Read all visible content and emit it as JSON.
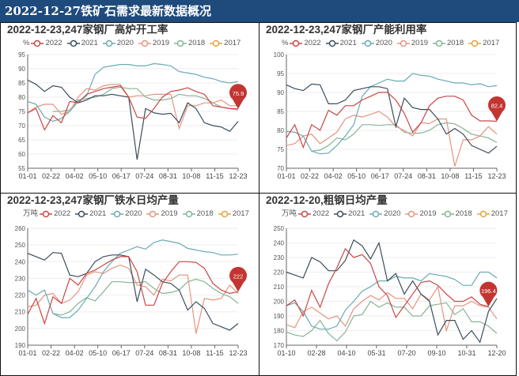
{
  "header": {
    "title": "2022-12-27铁矿石需求最新数据概况"
  },
  "colors": {
    "2022": "#c94744",
    "2021": "#3b4d5c",
    "2020": "#6aaab2",
    "2019": "#e59480",
    "2018": "#86b395",
    "2017": "#e6a23c",
    "marker": "#c23531"
  },
  "chart_data": [
    {
      "type": "line",
      "title": "2022-12-23,247家钢厂高炉开工率",
      "unit": "%",
      "ylim": [
        55,
        95
      ],
      "yticks": [
        "55",
        "60",
        "65",
        "70",
        "75",
        "80",
        "85",
        "90",
        "95"
      ],
      "xticks": [
        "01-01",
        "02-22",
        "04-02",
        "05-10",
        "06-17",
        "07-24",
        "08-31",
        "10-08",
        "11-15",
        "12-23"
      ],
      "marker_label": "75.9",
      "legend": [
        "2022",
        "2021",
        "2020",
        "2019",
        "2018",
        "2017"
      ],
      "series": [
        {
          "name": "2022",
          "values": [
            74.5,
            76,
            68.5,
            73.5,
            71,
            78.5,
            78,
            81,
            82,
            83,
            83.5,
            84,
            80,
            73,
            72.5,
            76,
            80,
            82,
            82.5,
            83.3,
            82,
            81,
            77,
            76.5,
            76,
            75.9
          ]
        },
        {
          "name": "2021",
          "values": [
            86,
            84.5,
            82,
            84,
            83.5,
            80,
            78,
            79,
            80.5,
            80.5,
            81,
            80.5,
            80,
            58,
            76,
            74.5,
            74,
            74.3,
            71,
            78,
            76,
            71,
            70,
            69.5,
            68,
            71.5
          ]
        },
        {
          "name": "2020",
          "values": [
            78.5,
            77.5,
            73,
            71.5,
            72.5,
            75,
            78.5,
            80.5,
            88,
            90.5,
            91,
            91.5,
            91.5,
            91,
            91,
            91.8,
            91.5,
            91,
            89,
            88.5,
            88,
            87,
            86.5,
            85.5,
            85,
            85.5
          ]
        },
        {
          "name": "2019",
          "values": [
            74.5,
            76.5,
            77.5,
            77.5,
            74,
            75,
            80,
            83,
            82.5,
            84,
            84.5,
            84.5,
            80,
            80.5,
            80.5,
            81,
            81,
            81,
            69,
            77,
            77,
            78,
            78,
            79,
            77,
            77
          ]
        },
        {
          "name": "2018",
          "values": [
            null,
            null,
            null,
            75,
            75,
            75.5,
            79,
            79.5,
            80,
            81,
            83,
            83.5,
            83,
            83,
            80,
            79,
            79,
            79.5,
            81,
            80.5,
            80.5,
            79.5,
            78,
            76.5,
            76,
            75.5
          ]
        },
        {
          "name": "2017",
          "values": []
        }
      ]
    },
    {
      "type": "line",
      "title": "2022-12-23,247家钢厂产能利用率",
      "unit": "%",
      "ylim": [
        70,
        100
      ],
      "yticks": [
        "70",
        "75",
        "80",
        "85",
        "90",
        "95",
        "100"
      ],
      "xticks": [
        "01-01",
        "02-22",
        "04-02",
        "05-10",
        "06-17",
        "07-24",
        "08-31",
        "10-08",
        "11-15",
        "12-23"
      ],
      "marker_label": "82.4",
      "legend": [
        "2022",
        "2021",
        "2020",
        "2019",
        "2018",
        "2017"
      ],
      "series": [
        {
          "name": "2022",
          "values": [
            78,
            81.5,
            75.5,
            81.5,
            80,
            85.3,
            84,
            86.5,
            86.5,
            88,
            89,
            90,
            90,
            88,
            84.5,
            79.5,
            82,
            86.5,
            88.5,
            89,
            89,
            88,
            84,
            82.5,
            82.5,
            82.4
          ]
        },
        {
          "name": "2021",
          "values": [
            92,
            91,
            90.5,
            92.2,
            92,
            87,
            87,
            88,
            90.5,
            91,
            91.5,
            91.5,
            91,
            81,
            88.5,
            86,
            85.5,
            85.5,
            83,
            79,
            80.5,
            79,
            76,
            75,
            74,
            75.8
          ]
        },
        {
          "name": "2020",
          "values": [
            79.7,
            79.5,
            78.5,
            74.5,
            73.8,
            74,
            76,
            78.5,
            81.5,
            89,
            91.5,
            92.5,
            93.5,
            93,
            93,
            95,
            94.5,
            94.3,
            93.5,
            93,
            92.5,
            92.5,
            92,
            92.3,
            91.5,
            91.8
          ]
        },
        {
          "name": "2019",
          "values": [
            76,
            76.5,
            78.5,
            79,
            76.5,
            78,
            79.5,
            83,
            84,
            83.5,
            84.2,
            85,
            83.5,
            81,
            80,
            78.5,
            82,
            81.8,
            83,
            83,
            70.5,
            77.5,
            77.5,
            78.5,
            81,
            79
          ]
        },
        {
          "name": "2018",
          "values": [
            null,
            null,
            null,
            74.5,
            74.8,
            76,
            78,
            77.5,
            79,
            81.5,
            81.5,
            81.3,
            81.5,
            81.5,
            79.5,
            79.2,
            79.3,
            80,
            81.5,
            82,
            81.7,
            80.5,
            79,
            78.5,
            78,
            76.8
          ]
        },
        {
          "name": "2017",
          "values": []
        }
      ]
    },
    {
      "type": "line",
      "title": "2022-12-23,247家钢厂铁水日均产量",
      "unit": "万吨",
      "ylim": [
        190,
        260
      ],
      "yticks": [
        "190",
        "200",
        "210",
        "220",
        "230",
        "240",
        "250",
        "260"
      ],
      "xticks": [
        "01-01",
        "02-22",
        "04-02",
        "05-10",
        "06-17",
        "07-24",
        "08-31",
        "10-08",
        "11-15",
        "12-23"
      ],
      "marker_label": "222",
      "legend": [
        "2022",
        "2021",
        "2020",
        "2019",
        "2018",
        "2017"
      ],
      "series": [
        {
          "name": "2022",
          "values": [
            208.5,
            218,
            203,
            219,
            215,
            230,
            226,
            233,
            235,
            238,
            241,
            243,
            243,
            234,
            214,
            214,
            227,
            234,
            240,
            240,
            239.5,
            236,
            227,
            223,
            221,
            222
          ]
        },
        {
          "name": "2021",
          "values": [
            245,
            243,
            241,
            245.5,
            245,
            232,
            231,
            233,
            240,
            243,
            244,
            244,
            243,
            216,
            235.5,
            232,
            228,
            227,
            223,
            211,
            216,
            212,
            203,
            201,
            199,
            203
          ]
        },
        {
          "name": "2020",
          "values": [
            223,
            220,
            223,
            209,
            206.5,
            206.5,
            211,
            218,
            225,
            234,
            240,
            245,
            247,
            249,
            247.5,
            251.5,
            253,
            252,
            251,
            248,
            247,
            246,
            245.5,
            244,
            244,
            244.5
          ]
        },
        {
          "name": "2019",
          "values": [
            213,
            214,
            220,
            221,
            215,
            217,
            222,
            232,
            234,
            233,
            236,
            238,
            236,
            226,
            225,
            220,
            229.5,
            228.5,
            232,
            232,
            197,
            218,
            217,
            218,
            226,
            221
          ]
        },
        {
          "name": "2018",
          "values": [
            null,
            null,
            null,
            209,
            208,
            210,
            215,
            218.5,
            216.5,
            222,
            228,
            228,
            227.5,
            227.5,
            228,
            224,
            221,
            221.5,
            223,
            228,
            229.5,
            228,
            224,
            221,
            219,
            215
          ]
        },
        {
          "name": "2017",
          "values": []
        }
      ]
    },
    {
      "type": "line",
      "title": "2022-12-20,粗钢日均产量",
      "unit": "万吨",
      "ylim": [
        170,
        250
      ],
      "yticks": [
        "170",
        "180",
        "190",
        "200",
        "210",
        "220",
        "230",
        "240",
        "250"
      ],
      "xticks": [
        "01-10",
        "02-28",
        "04-10",
        "05-31",
        "07-20",
        "09-10",
        "10-31",
        "12-20"
      ],
      "marker_label": "196.4",
      "legend": [
        "2022",
        "2021",
        "2020",
        "2019",
        "2018",
        "2017"
      ],
      "series": [
        {
          "name": "2022",
          "values": [
            197,
            201,
            190,
            207.5,
            196,
            212,
            223,
            236,
            230,
            232,
            226,
            210,
            204,
            189,
            197,
            205,
            213,
            214,
            211,
            205,
            200,
            200,
            203,
            198,
            196.4,
            null
          ]
        },
        {
          "name": "2021",
          "values": [
            220,
            218,
            216,
            230,
            227,
            221,
            221,
            228,
            242,
            238,
            229,
            240,
            214,
            219,
            205,
            214,
            205,
            200,
            177,
            187,
            187,
            174,
            180,
            172,
            193,
            202
          ]
        },
        {
          "name": "2020",
          "values": [
            197,
            199,
            193,
            183,
            181,
            181,
            183,
            194,
            200,
            207,
            210,
            214,
            214,
            217,
            216,
            216,
            214,
            219,
            218,
            217,
            215,
            211,
            211,
            220,
            220,
            216
          ]
        },
        {
          "name": "2019",
          "values": [
            184,
            182,
            193,
            196,
            192,
            188,
            190,
            183,
            195,
            200,
            204,
            201,
            206,
            202,
            202,
            195,
            205,
            201,
            210,
            180,
            197,
            197,
            200,
            197,
            196,
            188
          ]
        },
        {
          "name": "2018",
          "values": [
            179,
            177,
            176,
            180,
            187,
            178,
            173,
            179,
            190,
            191,
            200,
            196,
            199,
            196,
            196,
            190,
            190,
            197,
            198,
            199,
            191,
            195,
            186,
            186,
            183,
            178
          ]
        },
        {
          "name": "2017",
          "values": []
        }
      ]
    }
  ]
}
